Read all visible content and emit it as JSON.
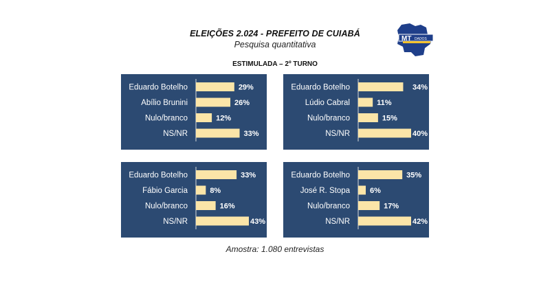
{
  "header": {
    "title": "ELEIÇÕES 2.024  -  PREFEITO DE CUIABÁ",
    "subtitle": "Pesquisa quantitativa",
    "section": "ESTIMULADA – 2º TURNO",
    "footer": "Amostra: 1.080 entrevistas"
  },
  "logo": {
    "text": "MT",
    "subtext": "DADOS",
    "map_color": "#1f3f8a",
    "bar_color": "#f2c12e"
  },
  "colors": {
    "panel_bg": "#2c4a72",
    "bar": "#fbe5a8",
    "text": "#ffffff"
  },
  "chart_data": [
    {
      "type": "bar",
      "orientation": "horizontal",
      "categories": [
        "Eduardo Botelho",
        "Abílio Brunini",
        "Nulo/branco",
        "NS/NR"
      ],
      "values": [
        29,
        26,
        12,
        33
      ],
      "value_labels": [
        "29%",
        "26%",
        "12%",
        "33%"
      ],
      "xlim": [
        0,
        40
      ]
    },
    {
      "type": "bar",
      "orientation": "horizontal",
      "categories": [
        "Eduardo Botelho",
        "Lúdio Cabral",
        "Nulo/branco",
        "NS/NR"
      ],
      "values": [
        34,
        11,
        15,
        40
      ],
      "value_labels": [
        "34%",
        "11%",
        "15%",
        "40%"
      ],
      "xlim": [
        0,
        40
      ]
    },
    {
      "type": "bar",
      "orientation": "horizontal",
      "categories": [
        "Eduardo Botelho",
        "Fábio Garcia",
        "Nulo/branco",
        "NS/NR"
      ],
      "values": [
        33,
        8,
        16,
        43
      ],
      "value_labels": [
        "33%",
        "8%",
        "16%",
        "43%"
      ],
      "xlim": [
        0,
        43
      ]
    },
    {
      "type": "bar",
      "orientation": "horizontal",
      "categories": [
        "Eduardo Botelho",
        "José R. Stopa",
        "Nulo/branco",
        "NS/NR"
      ],
      "values": [
        35,
        6,
        17,
        42
      ],
      "value_labels": [
        "35%",
        "6%",
        "17%",
        "42%"
      ],
      "xlim": [
        0,
        42
      ]
    }
  ]
}
